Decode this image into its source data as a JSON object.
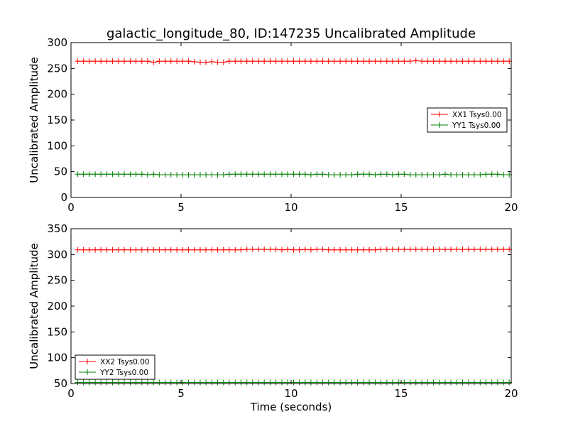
{
  "chart_data": [
    {
      "type": "line",
      "title": "galactic_longitude_80, ID:147235 Uncalibrated Amplitude",
      "xlabel": "",
      "ylabel": "Uncalibrated Amplitude",
      "xlim": [
        0,
        20
      ],
      "ylim": [
        0,
        300
      ],
      "xticks": [
        "0",
        "5",
        "10",
        "15",
        "20"
      ],
      "yticks": [
        "0",
        "50",
        "100",
        "150",
        "200",
        "250",
        "300"
      ],
      "legend_position": "center-right",
      "x": [
        0.3,
        0.57,
        0.83,
        1.1,
        1.36,
        1.63,
        1.89,
        2.16,
        2.42,
        2.69,
        2.95,
        3.22,
        3.48,
        3.75,
        4.01,
        4.28,
        4.54,
        4.81,
        5.07,
        5.34,
        5.6,
        5.87,
        6.13,
        6.4,
        6.66,
        6.93,
        7.19,
        7.46,
        7.72,
        7.99,
        8.25,
        8.52,
        8.78,
        9.05,
        9.31,
        9.58,
        9.84,
        10.11,
        10.37,
        10.64,
        10.9,
        11.17,
        11.43,
        11.7,
        11.96,
        12.23,
        12.49,
        12.76,
        13.02,
        13.29,
        13.55,
        13.82,
        14.08,
        14.35,
        14.61,
        14.88,
        15.14,
        15.41,
        15.67,
        15.94,
        16.2,
        16.47,
        16.73,
        17.0,
        17.26,
        17.53,
        17.79,
        18.06,
        18.32,
        18.59,
        18.85,
        19.12,
        19.38,
        19.65,
        19.91
      ],
      "series": [
        {
          "name": "XX1 Tsys0.00",
          "color": "#ff0000",
          "values": [
            264,
            264,
            264,
            264,
            264,
            264,
            264,
            264,
            264,
            264,
            264,
            264,
            264,
            262,
            264,
            264,
            264,
            264,
            264,
            264,
            263,
            262,
            262,
            263,
            262,
            262,
            264,
            264,
            264,
            264,
            264,
            264,
            264,
            264,
            264,
            264,
            264,
            264,
            264,
            264,
            264,
            264,
            264,
            264,
            264,
            264,
            264,
            264,
            264,
            264,
            264,
            264,
            264,
            264,
            264,
            264,
            264,
            264,
            265,
            264,
            264,
            264,
            264,
            264,
            264,
            264,
            264,
            264,
            264,
            264,
            264,
            264,
            264,
            264,
            264
          ]
        },
        {
          "name": "YY1 Tsys0.00",
          "color": "#008000",
          "values": [
            45,
            45,
            45,
            45,
            45,
            45,
            45,
            45,
            45,
            45,
            45,
            45,
            44,
            45,
            44,
            44,
            44,
            44,
            44,
            44,
            44,
            44,
            44,
            44,
            44,
            44,
            45,
            45,
            45,
            45,
            45,
            45,
            45,
            45,
            45,
            45,
            45,
            45,
            45,
            45,
            44,
            45,
            45,
            44,
            44,
            44,
            44,
            44,
            45,
            45,
            45,
            44,
            45,
            45,
            44,
            45,
            45,
            44,
            44,
            44,
            44,
            44,
            44,
            45,
            44,
            44,
            44,
            44,
            44,
            44,
            45,
            45,
            45,
            44,
            44
          ]
        }
      ]
    },
    {
      "type": "line",
      "title": "",
      "xlabel": "Time (seconds)",
      "ylabel": "Uncalibrated Amplitude",
      "xlim": [
        0,
        20
      ],
      "ylim": [
        50,
        350
      ],
      "xticks": [
        "0",
        "5",
        "10",
        "15",
        "20"
      ],
      "yticks": [
        "50",
        "100",
        "150",
        "200",
        "250",
        "300",
        "350"
      ],
      "legend_position": "lower-left",
      "x": [
        0.3,
        0.57,
        0.83,
        1.1,
        1.36,
        1.63,
        1.89,
        2.16,
        2.42,
        2.69,
        2.95,
        3.22,
        3.48,
        3.75,
        4.01,
        4.28,
        4.54,
        4.81,
        5.07,
        5.34,
        5.6,
        5.87,
        6.13,
        6.4,
        6.66,
        6.93,
        7.19,
        7.46,
        7.72,
        7.99,
        8.25,
        8.52,
        8.78,
        9.05,
        9.31,
        9.58,
        9.84,
        10.11,
        10.37,
        10.64,
        10.9,
        11.17,
        11.43,
        11.7,
        11.96,
        12.23,
        12.49,
        12.76,
        13.02,
        13.29,
        13.55,
        13.82,
        14.08,
        14.35,
        14.61,
        14.88,
        15.14,
        15.41,
        15.67,
        15.94,
        16.2,
        16.47,
        16.73,
        17.0,
        17.26,
        17.53,
        17.79,
        18.06,
        18.32,
        18.59,
        18.85,
        19.12,
        19.38,
        19.65,
        19.91
      ],
      "series": [
        {
          "name": "XX2 Tsys0.00",
          "color": "#ff0000",
          "values": [
            309,
            309,
            309,
            309,
            309,
            309,
            309,
            309,
            309,
            309,
            309,
            309,
            309,
            309,
            309,
            309,
            309,
            309,
            309,
            309,
            309,
            309,
            309,
            309,
            309,
            309,
            309,
            309,
            309,
            310,
            310,
            310,
            310,
            310,
            310,
            309,
            310,
            309,
            309,
            310,
            309,
            310,
            310,
            309,
            309,
            309,
            309,
            309,
            309,
            309,
            309,
            309,
            310,
            310,
            310,
            310,
            310,
            310,
            310,
            310,
            310,
            310,
            310,
            310,
            310,
            310,
            310,
            310,
            310,
            310,
            310,
            310,
            310,
            310,
            310
          ]
        },
        {
          "name": "YY2 Tsys0.00",
          "color": "#008000",
          "values": [
            52,
            52,
            52,
            52,
            52,
            52,
            52,
            52,
            52,
            52,
            52,
            52,
            52,
            52,
            52,
            52,
            52,
            52,
            52,
            52,
            52,
            52,
            52,
            52,
            52,
            52,
            52,
            52,
            52,
            52,
            52,
            52,
            52,
            52,
            52,
            52,
            52,
            52,
            52,
            52,
            52,
            52,
            52,
            52,
            52,
            52,
            52,
            52,
            52,
            52,
            52,
            52,
            52,
            52,
            52,
            52,
            52,
            52,
            52,
            52,
            52,
            52,
            52,
            52,
            52,
            52,
            52,
            52,
            52,
            52,
            52,
            52,
            52,
            52,
            52
          ]
        }
      ]
    }
  ]
}
